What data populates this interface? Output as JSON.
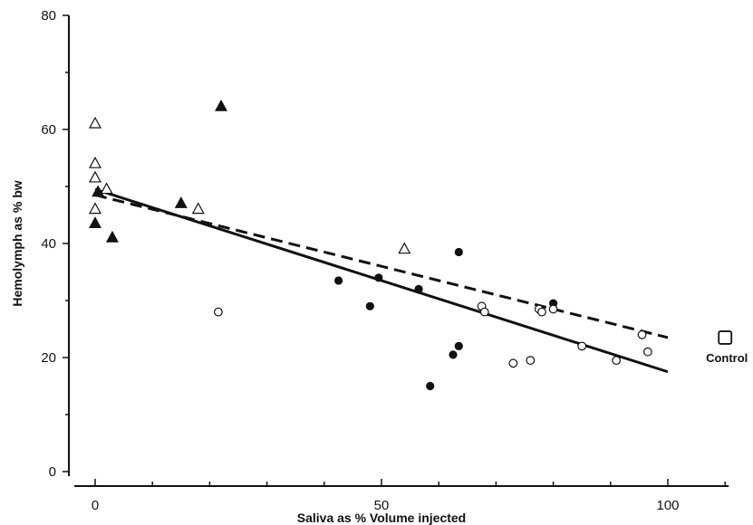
{
  "chart_data": {
    "type": "scatter",
    "xlabel": "Saliva as % Volume injected",
    "ylabel": "Hemolymph as % bw",
    "xlim": [
      -3,
      110
    ],
    "ylim": [
      0,
      80
    ],
    "x_ticks": [
      0,
      50,
      100
    ],
    "y_ticks": [
      0,
      20,
      40,
      60,
      80
    ],
    "grid": false,
    "legend": "none",
    "series": [
      {
        "marker": "open-triangle",
        "points": [
          {
            "x": 0,
            "y": 61
          },
          {
            "x": 0,
            "y": 54
          },
          {
            "x": 0,
            "y": 51.5
          },
          {
            "x": 0,
            "y": 46
          },
          {
            "x": 2,
            "y": 49.5
          },
          {
            "x": 18,
            "y": 46
          },
          {
            "x": 54,
            "y": 39
          }
        ]
      },
      {
        "marker": "filled-triangle",
        "points": [
          {
            "x": 0,
            "y": 43.5
          },
          {
            "x": 0.5,
            "y": 49
          },
          {
            "x": 3,
            "y": 41
          },
          {
            "x": 15,
            "y": 47
          },
          {
            "x": 22,
            "y": 64
          }
        ]
      },
      {
        "marker": "filled-circle",
        "points": [
          {
            "x": 42.5,
            "y": 33.5
          },
          {
            "x": 48,
            "y": 29
          },
          {
            "x": 49.5,
            "y": 34
          },
          {
            "x": 56.5,
            "y": 32
          },
          {
            "x": 58.5,
            "y": 15
          },
          {
            "x": 62.5,
            "y": 20.5
          },
          {
            "x": 63.5,
            "y": 22
          },
          {
            "x": 63.5,
            "y": 38.5
          },
          {
            "x": 80,
            "y": 29.5
          }
        ]
      },
      {
        "marker": "open-circle",
        "points": [
          {
            "x": 21.5,
            "y": 28
          },
          {
            "x": 67.5,
            "y": 29
          },
          {
            "x": 68,
            "y": 28
          },
          {
            "x": 73,
            "y": 19
          },
          {
            "x": 76,
            "y": 19.5
          },
          {
            "x": 77.5,
            "y": 28.5
          },
          {
            "x": 78,
            "y": 28
          },
          {
            "x": 80,
            "y": 28.5
          },
          {
            "x": 85,
            "y": 22
          },
          {
            "x": 91,
            "y": 19.5
          },
          {
            "x": 95.5,
            "y": 24
          },
          {
            "x": 96.5,
            "y": 21
          }
        ]
      }
    ],
    "fit_lines": [
      {
        "style": "solid",
        "from": [
          0,
          49.5
        ],
        "to": [
          100,
          17.5
        ]
      },
      {
        "style": "dashed",
        "from": [
          0,
          48.5
        ],
        "to": [
          100,
          23.5
        ]
      }
    ],
    "control": {
      "label": "Control",
      "x": 110,
      "y": 23.5,
      "marker": "open-square"
    }
  }
}
